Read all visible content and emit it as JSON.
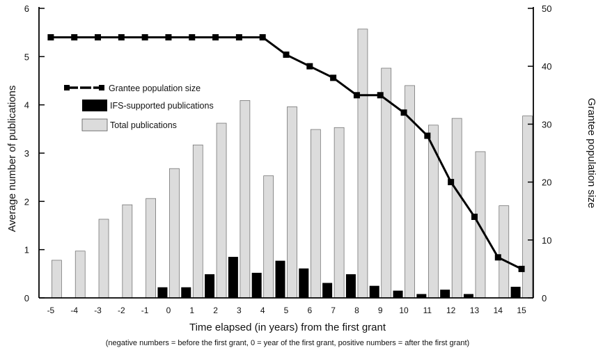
{
  "chart_data": {
    "type": "bar",
    "title": "",
    "xlabel": "Time elapsed (in years) from the first grant",
    "xlabel_note": "(negative numbers = before the first grant, 0 = year of the first grant, positive numbers = after the first grant)",
    "ylabel": "Average number of publications",
    "y2label": "Grantee population size",
    "categories": [
      "-5",
      "-4",
      "-3",
      "-2",
      "-1",
      "0",
      "1",
      "2",
      "3",
      "4",
      "5",
      "6",
      "7",
      "8",
      "9",
      "10",
      "11",
      "12",
      "13",
      "14",
      "15"
    ],
    "ylim": [
      0,
      6
    ],
    "y2lim": [
      0,
      50
    ],
    "yticks": [
      0,
      1,
      2,
      3,
      4,
      5,
      6
    ],
    "y2ticks": [
      0,
      10,
      20,
      30,
      40,
      50
    ],
    "legend_position": "upper-left",
    "series": [
      {
        "name": "Total publications",
        "kind": "bar",
        "axis": "left",
        "color": "#dcdcdc",
        "values": [
          0.78,
          0.97,
          1.63,
          1.93,
          2.06,
          2.68,
          3.17,
          3.62,
          4.09,
          2.53,
          3.96,
          3.49,
          3.53,
          5.57,
          4.76,
          4.4,
          3.58,
          3.72,
          3.03,
          1.91,
          3.77
        ]
      },
      {
        "name": "IFS-supported publications",
        "kind": "bar",
        "axis": "left",
        "color": "#000000",
        "values": [
          0,
          0,
          0,
          0,
          0,
          0.22,
          0.22,
          0.49,
          0.85,
          0.52,
          0.77,
          0.61,
          0.31,
          0.49,
          0.25,
          0.15,
          0.08,
          0.17,
          0.08,
          0,
          0.23
        ]
      },
      {
        "name": "Grantee population size",
        "kind": "line",
        "axis": "right",
        "color": "#000000",
        "values": [
          45,
          45,
          45,
          45,
          45,
          45,
          45,
          45,
          45,
          45,
          42,
          40,
          38,
          35,
          35,
          32,
          28,
          20,
          14,
          7,
          5
        ]
      }
    ]
  }
}
